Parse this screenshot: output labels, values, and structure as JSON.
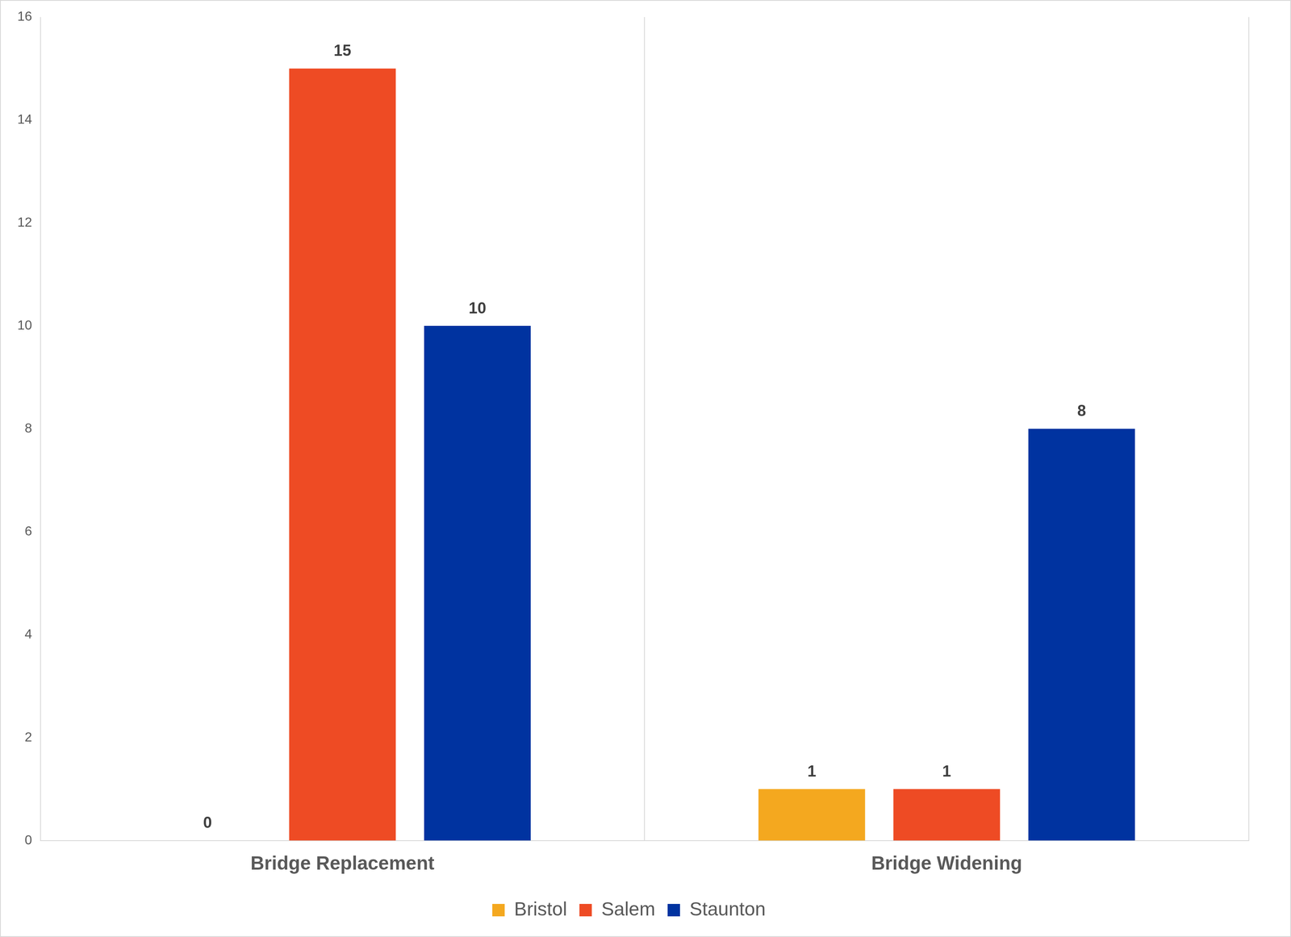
{
  "chart_data": {
    "type": "bar",
    "categories": [
      "Bridge Replacement",
      "Bridge Widening"
    ],
    "series": [
      {
        "name": "Bristol",
        "color": "#F4A81F",
        "values": [
          0,
          1
        ]
      },
      {
        "name": "Salem",
        "color": "#EE4B24",
        "values": [
          15,
          1
        ]
      },
      {
        "name": "Staunton",
        "color": "#0033A0",
        "values": [
          10,
          8
        ]
      }
    ],
    "ylim": [
      0,
      16
    ],
    "yticks": [
      0,
      2,
      4,
      6,
      8,
      10,
      12,
      14,
      16
    ],
    "grid": false,
    "legend": "bottom",
    "data_labels": true
  }
}
